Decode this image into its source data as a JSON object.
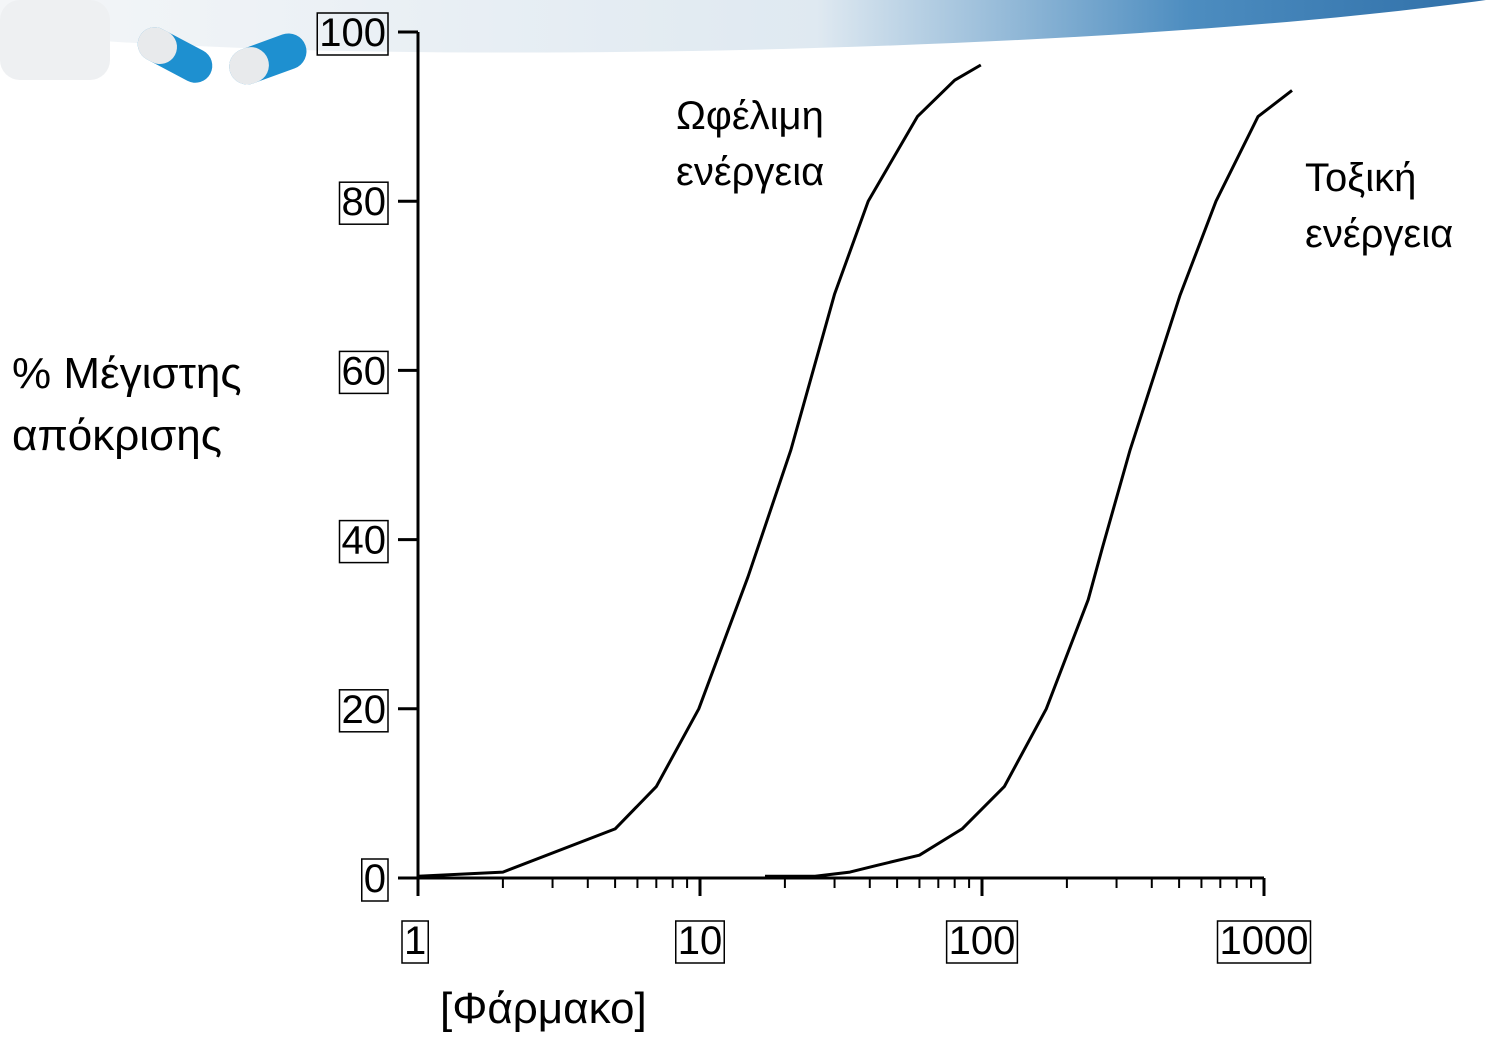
{
  "chart_data": {
    "type": "line",
    "xlabel": "[Φάρμακο]",
    "ylabel": "% Μέγιστης απόκρισης",
    "xscale": "log",
    "xlim": [
      1,
      1000
    ],
    "xticks": [
      1,
      10,
      100,
      1000
    ],
    "xminorticks": [
      2,
      3,
      4,
      5,
      6,
      7,
      8,
      9,
      20,
      30,
      40,
      50,
      60,
      70,
      80,
      90,
      200,
      300,
      400,
      500,
      600,
      700,
      800,
      900
    ],
    "ylim": [
      0,
      100
    ],
    "yticks": [
      0,
      20,
      40,
      60,
      80,
      100
    ],
    "grid": false,
    "tick_label_boxes": true,
    "series": [
      {
        "name": "Ωφέλιμη ενέργεια",
        "color": "#000000",
        "x": [
          1,
          2,
          5,
          7,
          9.9,
          14.8,
          21,
          30,
          39.5,
          59,
          80,
          99
        ],
        "values": [
          0.2,
          0.7,
          5.8,
          10.8,
          20,
          35.6,
          50.6,
          69,
          80,
          90,
          94.3,
          96.1
        ]
      },
      {
        "name": "Τοξική ενέργεια",
        "color": "#000000",
        "x": [
          17,
          25.6,
          34,
          42.5,
          60,
          85,
          120,
          169,
          238,
          267,
          335,
          504,
          676,
          952,
          1257
        ],
        "values": [
          0.2,
          0.2,
          0.7,
          1.5,
          2.7,
          5.8,
          10.8,
          20,
          32.9,
          39,
          50.6,
          68.9,
          80,
          90,
          93.1
        ]
      }
    ]
  }
}
